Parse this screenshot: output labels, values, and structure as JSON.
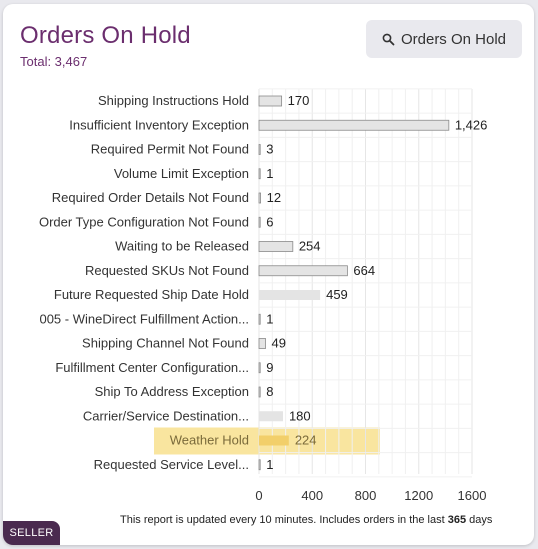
{
  "header": {
    "title": "Orders On Hold",
    "total": "Total: 3,467",
    "button_label": "Orders On Hold"
  },
  "footer": {
    "prefix": "This report is updated every 10 minutes. Includes orders in the last ",
    "days_value": "365",
    "suffix": " days"
  },
  "badge": {
    "label": "SELLER"
  },
  "colors": {
    "title": "#6b2e6e",
    "bar": "#e4e4e4",
    "highlight": "#f8e08e"
  },
  "chart_data": {
    "type": "bar",
    "orientation": "horizontal",
    "categories": [
      "Shipping Instructions Hold",
      "Insufficient Inventory Exception",
      "Required Permit Not Found",
      "Volume Limit Exception",
      "Required Order Details Not Found",
      "Order Type Configuration Not Found",
      "Waiting to be Released",
      "Requested SKUs Not Found",
      "Future Requested Ship Date Hold",
      "005 - WineDirect Fulfillment Action...",
      "Shipping Channel Not Found",
      "Fulfillment Center Configuration...",
      "Ship To Address Exception",
      "Carrier/Service Destination...",
      "Weather Hold",
      "Requested Service Level..."
    ],
    "values": [
      170,
      1426,
      3,
      1,
      12,
      6,
      254,
      664,
      459,
      1,
      49,
      9,
      8,
      180,
      224,
      1
    ],
    "value_labels": [
      "170",
      "1,426",
      "3",
      "1",
      "12",
      "6",
      "254",
      "664",
      "459",
      "1",
      "49",
      "9",
      "8",
      "180",
      "224",
      "1"
    ],
    "xlim": [
      0,
      1600
    ],
    "xticks": [
      0,
      400,
      800,
      1200,
      1600
    ],
    "highlighted_category": "Weather Hold",
    "grid": true,
    "legend": "none"
  }
}
